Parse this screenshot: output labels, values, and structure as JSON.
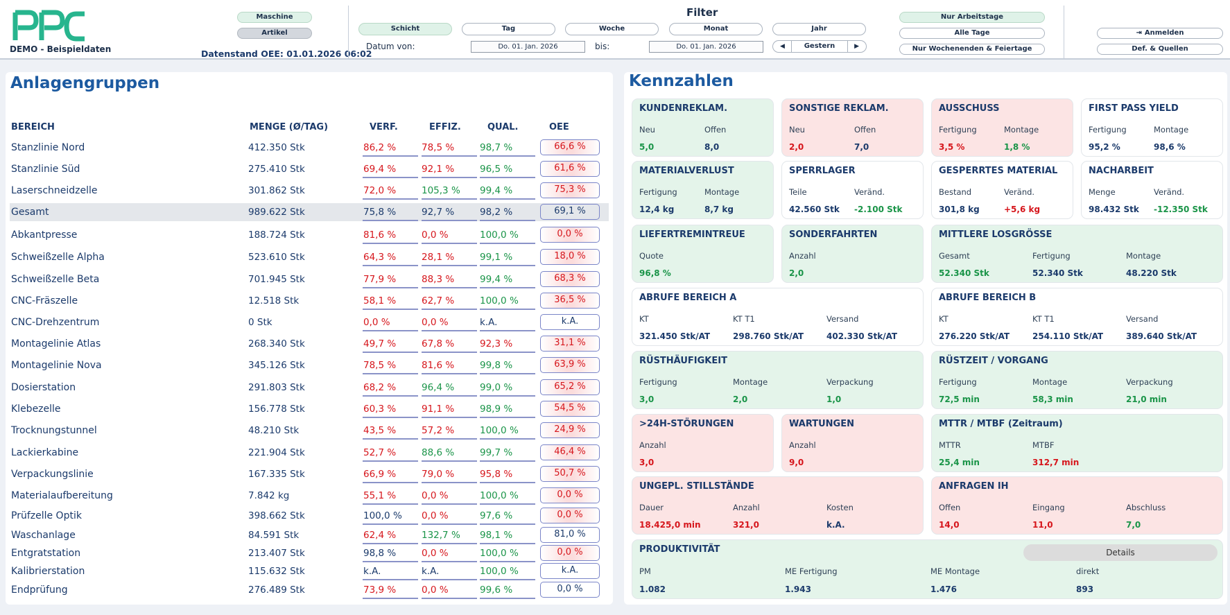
{
  "header": {
    "demo_label": "DEMO - Beispieldaten",
    "datenstand": "Datenstand OEE: 01.01.2026 06:02",
    "mode_options": [
      "Maschine",
      "Artikel"
    ],
    "filter_title": "Filter",
    "period_tabs": [
      "Schicht",
      "Tag",
      "Woche",
      "Monat",
      "Jahr"
    ],
    "datum_von_label": "Datum von:",
    "datum_von": "Do. 01. Jan. 2026",
    "bis_label": "bis:",
    "datum_bis": "Do. 01. Jan. 2026",
    "prev_glyph": "◀",
    "next_glyph": "▶",
    "nav_label": "Gestern",
    "day_filters": [
      "Nur Arbeitstage",
      "Alle Tage",
      "Nur Wochenenden & Feiertage"
    ],
    "login_label": "Anmelden",
    "login_glyph": "⇥",
    "defs_label": "Def. & Quellen"
  },
  "colors": {
    "accent_logo": "#27b58e",
    "title_blue": "#1c5aa0",
    "red": "#d6161c",
    "green": "#1a9448",
    "card_green": "#e4f4ea",
    "card_red": "#fce4e4"
  },
  "anlagen": {
    "title": "Anlagengruppen",
    "headers": [
      "BEREICH",
      "MENGE (Ø/TAG)",
      "VERF.",
      "EFFIZ.",
      "QUAL.",
      "OEE"
    ],
    "rows": [
      {
        "name": "Stanzlinie Nord",
        "menge": "412.350 Stk",
        "verf": "86,2 %",
        "effiz": "78,5 %",
        "qual": "98,7 %",
        "oee": "66,6 %",
        "cv": "red",
        "ce": "red",
        "cq": "green",
        "co": "red"
      },
      {
        "name": "Stanzlinie Süd",
        "menge": "275.410 Stk",
        "verf": "69,4 %",
        "effiz": "92,1 %",
        "qual": "96,5 %",
        "oee": "61,6 %",
        "cv": "red",
        "ce": "red",
        "cq": "green",
        "co": "red"
      },
      {
        "name": "Laserschneidzelle",
        "menge": "301.862 Stk",
        "verf": "72,0 %",
        "effiz": "105,3 %",
        "qual": "99,4 %",
        "oee": "75,3 %",
        "cv": "red",
        "ce": "green",
        "cq": "green",
        "co": "red"
      },
      {
        "name": "Gesamt",
        "menge": "989.622 Stk",
        "verf": "75,8 %",
        "effiz": "92,7 %",
        "qual": "98,2 %",
        "oee": "69,1 %",
        "cv": "blue",
        "ce": "blue",
        "cq": "blue",
        "co": "blue",
        "hl": true
      },
      {
        "name": "Abkantpresse",
        "menge": "188.724 Stk",
        "verf": "81,6 %",
        "effiz": "0,0 %",
        "qual": "100,0 %",
        "oee": "0,0 %",
        "cv": "red",
        "ce": "red",
        "cq": "green",
        "co": "red"
      },
      {
        "name": "Schweißzelle Alpha",
        "menge": "523.610 Stk",
        "verf": "64,3 %",
        "effiz": "28,1 %",
        "qual": "99,1 %",
        "oee": "18,0 %",
        "cv": "red",
        "ce": "red",
        "cq": "green",
        "co": "red"
      },
      {
        "name": "Schweißzelle Beta",
        "menge": "701.945 Stk",
        "verf": "77,9 %",
        "effiz": "88,3 %",
        "qual": "99,4 %",
        "oee": "68,3 %",
        "cv": "red",
        "ce": "red",
        "cq": "green",
        "co": "red"
      },
      {
        "name": "CNC-Fräszelle",
        "menge": "12.518 Stk",
        "verf": "58,1 %",
        "effiz": "62,7 %",
        "qual": "100,0 %",
        "oee": "36,5 %",
        "cv": "red",
        "ce": "red",
        "cq": "green",
        "co": "red"
      },
      {
        "name": "CNC-Drehzentrum",
        "menge": "0 Stk",
        "verf": "0,0 %",
        "effiz": "0,0 %",
        "qual": "k.A.",
        "oee": "k.A.",
        "cv": "red",
        "ce": "red",
        "cq": "blue",
        "co": "blue"
      },
      {
        "name": "Montagelinie Atlas",
        "menge": "268.340 Stk",
        "verf": "49,7 %",
        "effiz": "67,8 %",
        "qual": "92,3 %",
        "oee": "31,1 %",
        "cv": "red",
        "ce": "red",
        "cq": "red",
        "co": "red"
      },
      {
        "name": "Montagelinie Nova",
        "menge": "345.126 Stk",
        "verf": "78,5 %",
        "effiz": "81,6 %",
        "qual": "99,8 %",
        "oee": "63,9 %",
        "cv": "red",
        "ce": "red",
        "cq": "green",
        "co": "red"
      },
      {
        "name": "Dosierstation",
        "menge": "291.803 Stk",
        "verf": "68,2 %",
        "effiz": "96,4 %",
        "qual": "99,0 %",
        "oee": "65,2 %",
        "cv": "red",
        "ce": "green",
        "cq": "green",
        "co": "red"
      },
      {
        "name": "Klebezelle",
        "menge": "156.778 Stk",
        "verf": "60,3 %",
        "effiz": "91,1 %",
        "qual": "98,9 %",
        "oee": "54,5 %",
        "cv": "red",
        "ce": "red",
        "cq": "green",
        "co": "red"
      },
      {
        "name": "Trocknungstunnel",
        "menge": "48.210 Stk",
        "verf": "43,5 %",
        "effiz": "57,2 %",
        "qual": "100,0 %",
        "oee": "24,9 %",
        "cv": "red",
        "ce": "red",
        "cq": "green",
        "co": "red"
      },
      {
        "name": "Lackierkabine",
        "menge": "221.904 Stk",
        "verf": "52,7 %",
        "effiz": "88,6 %",
        "qual": "99,7 %",
        "oee": "46,4 %",
        "cv": "red",
        "ce": "green",
        "cq": "green",
        "co": "red"
      },
      {
        "name": "Verpackungslinie",
        "menge": "167.335 Stk",
        "verf": "66,9 %",
        "effiz": "79,0 %",
        "qual": "95,8 %",
        "oee": "50,7 %",
        "cv": "red",
        "ce": "red",
        "cq": "red",
        "co": "red"
      },
      {
        "name": "Materialaufbereitung",
        "menge": "7.842 kg",
        "verf": "55,1 %",
        "effiz": "0,0 %",
        "qual": "100,0 %",
        "oee": "0,0 %",
        "cv": "red",
        "ce": "red",
        "cq": "green",
        "co": "red"
      },
      {
        "name": "Prüfzelle Optik",
        "menge": "398.662 Stk",
        "verf": "100,0 %",
        "effiz": "0,0 %",
        "qual": "97,6 %",
        "oee": "0,0 %",
        "cv": "blue",
        "ce": "red",
        "cq": "green",
        "co": "red"
      },
      {
        "name": "Waschanlage",
        "menge": "84.591 Stk",
        "verf": "62,4 %",
        "effiz": "132,7 %",
        "qual": "98,1 %",
        "oee": "81,0 %",
        "cv": "red",
        "ce": "green",
        "cq": "green",
        "co": "blue"
      },
      {
        "name": "Entgratstation",
        "menge": "213.407 Stk",
        "verf": "98,8 %",
        "effiz": "0,0 %",
        "qual": "100,0 %",
        "oee": "0,0 %",
        "cv": "blue",
        "ce": "red",
        "cq": "green",
        "co": "red"
      },
      {
        "name": "Kalibrierstation",
        "menge": "115.632 Stk",
        "verf": "k.A.",
        "effiz": "k.A.",
        "qual": "100,0 %",
        "oee": "k.A.",
        "cv": "blue",
        "ce": "blue",
        "cq": "green",
        "co": "blue"
      },
      {
        "name": "Endprüfung",
        "menge": "276.489 Stk",
        "verf": "73,9 %",
        "effiz": "0,0 %",
        "qual": "99,6 %",
        "oee": "0,0 %",
        "cv": "red",
        "ce": "red",
        "cq": "green",
        "co": "blue"
      }
    ]
  },
  "kennzahlen": {
    "title": "Kennzahlen",
    "cards": [
      {
        "title": "KUNDENREKLAM.",
        "bg": "g",
        "fields": [
          {
            "label": "Neu",
            "value": "5,0",
            "color": "green"
          },
          {
            "label": "Offen",
            "value": "8,0",
            "color": "blue"
          }
        ]
      },
      {
        "title": "SONSTIGE REKLAM.",
        "bg": "r",
        "fields": [
          {
            "label": "Neu",
            "value": "2,0",
            "color": "red"
          },
          {
            "label": "Offen",
            "value": "7,0",
            "color": "blue"
          }
        ]
      },
      {
        "title": "AUSSCHUSS",
        "bg": "r",
        "fields": [
          {
            "label": "Fertigung",
            "value": "3,5 %",
            "color": "red"
          },
          {
            "label": "Montage",
            "value": "1,8 %",
            "color": "green"
          }
        ]
      },
      {
        "title": "FIRST PASS YIELD",
        "bg": "w",
        "fields": [
          {
            "label": "Fertigung",
            "value": "95,2 %",
            "color": "blue"
          },
          {
            "label": "Montage",
            "value": "98,6 %",
            "color": "blue"
          }
        ]
      },
      {
        "title": "MATERIALVERLUST",
        "bg": "g",
        "fields": [
          {
            "label": "Fertigung",
            "value": "12,4 kg",
            "color": "blue"
          },
          {
            "label": "Montage",
            "value": "8,7 kg",
            "color": "blue"
          }
        ]
      },
      {
        "title": "SPERRLAGER",
        "bg": "w",
        "fields": [
          {
            "label": "Teile",
            "value": "42.560 Stk",
            "color": "blue"
          },
          {
            "label": "Veränd.",
            "value": "-2.100 Stk",
            "color": "green"
          }
        ]
      },
      {
        "title": "GESPERRTES MATERIAL",
        "bg": "w",
        "fields": [
          {
            "label": "Bestand",
            "value": "301,8 kg",
            "color": "blue"
          },
          {
            "label": "Veränd.",
            "value": "+5,6 kg",
            "color": "red"
          }
        ]
      },
      {
        "title": "NACHARBEIT",
        "bg": "w",
        "fields": [
          {
            "label": "Menge",
            "value": "98.432 Stk",
            "color": "blue"
          },
          {
            "label": "Veränd.",
            "value": "-12.350 Stk",
            "color": "green"
          }
        ]
      },
      {
        "title": "LIEFERTREMINTREUE",
        "bg": "g",
        "fields": [
          {
            "label": "Quote",
            "value": "96,8 %",
            "color": "green"
          }
        ]
      },
      {
        "title": "SONDERFAHRTEN",
        "bg": "g",
        "fields": [
          {
            "label": "Anzahl",
            "value": "2,0",
            "color": "green"
          }
        ]
      },
      {
        "title": "MITTLERE LOSGRÖSSE",
        "bg": "g",
        "fields": [
          {
            "label": "Gesamt",
            "value": "52.340 Stk",
            "color": "green"
          },
          {
            "label": "Fertigung",
            "value": "52.340 Stk",
            "color": "blue"
          },
          {
            "label": "Montage",
            "value": "48.220 Stk",
            "color": "blue"
          }
        ]
      },
      {
        "title": "ABRUFE BEREICH A",
        "bg": "w",
        "fields": [
          {
            "label": "KT",
            "value": "321.450 Stk/AT",
            "color": "blue"
          },
          {
            "label": "KT T1",
            "value": "298.760 Stk/AT",
            "color": "blue"
          },
          {
            "label": "Versand",
            "value": "402.330 Stk/AT",
            "color": "blue"
          }
        ]
      },
      {
        "title": "ABRUFE BEREICH B",
        "bg": "w",
        "fields": [
          {
            "label": "KT",
            "value": "276.220 Stk/AT",
            "color": "blue"
          },
          {
            "label": "KT T1",
            "value": "254.110 Stk/AT",
            "color": "blue"
          },
          {
            "label": "Versand",
            "value": "389.640 Stk/AT",
            "color": "blue"
          }
        ]
      },
      {
        "title": "RÜSTHÄUFIGKEIT",
        "bg": "g",
        "fields": [
          {
            "label": "Fertigung",
            "value": "3,0",
            "color": "green"
          },
          {
            "label": "Montage",
            "value": "2,0",
            "color": "green"
          },
          {
            "label": "Verpackung",
            "value": "1,0",
            "color": "green"
          }
        ]
      },
      {
        "title": "RÜSTZEIT / VORGANG",
        "bg": "g",
        "fields": [
          {
            "label": "Fertigung",
            "value": "72,5 min",
            "color": "green"
          },
          {
            "label": "Montage",
            "value": "58,3 min",
            "color": "green"
          },
          {
            "label": "Verpackung",
            "value": "21,0 min",
            "color": "green"
          }
        ]
      },
      {
        "title": ">24H-STÖRUNGEN",
        "bg": "r",
        "fields": [
          {
            "label": "Anzahl",
            "value": "3,0",
            "color": "red"
          }
        ]
      },
      {
        "title": "WARTUNGEN",
        "bg": "r",
        "fields": [
          {
            "label": "Anzahl",
            "value": "9,0",
            "color": "red"
          }
        ]
      },
      {
        "title": "MTTR / MTBF (Zeitraum)",
        "bg": "g",
        "fields": [
          {
            "label": "MTTR",
            "value": "25,4 min",
            "color": "green"
          },
          {
            "label": "MTBF",
            "value": "312,7 min",
            "color": "red"
          }
        ]
      },
      {
        "title": "UNGEPL. STILLSTÄNDE",
        "bg": "r",
        "fields": [
          {
            "label": "Dauer",
            "value": "18.425,0 min",
            "color": "red"
          },
          {
            "label": "Anzahl",
            "value": "321,0",
            "color": "red"
          },
          {
            "label": "Kosten",
            "value": "k.A.",
            "color": "blue"
          }
        ]
      },
      {
        "title": "ANFRAGEN IH",
        "bg": "r",
        "fields": [
          {
            "label": "Offen",
            "value": "14,0",
            "color": "red"
          },
          {
            "label": "Eingang",
            "value": "11,0",
            "color": "red"
          },
          {
            "label": "Abschluss",
            "value": "7,0",
            "color": "green"
          }
        ]
      },
      {
        "title": "PRODUKTIVITÄT",
        "bg": "g",
        "fields": [
          {
            "label": "PM",
            "value": "1.082",
            "color": "blue"
          },
          {
            "label": "ME Fertigung",
            "value": "1.943",
            "color": "blue"
          },
          {
            "label": "ME Montage",
            "value": "1.476",
            "color": "blue"
          },
          {
            "label": "direkt",
            "value": "893",
            "color": "blue"
          }
        ],
        "button": "Details"
      }
    ]
  }
}
